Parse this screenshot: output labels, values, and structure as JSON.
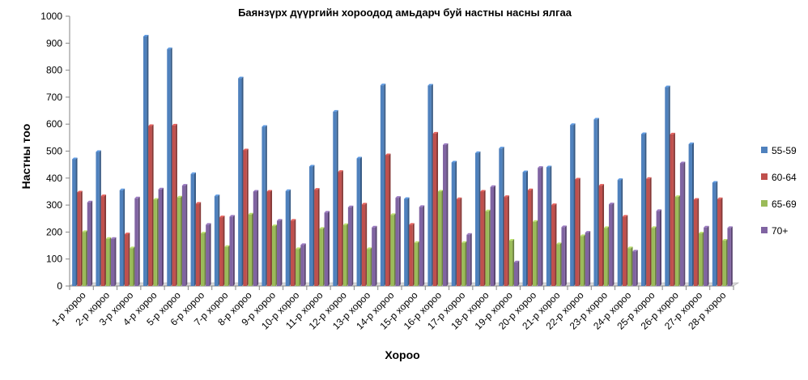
{
  "chart_data": {
    "type": "bar",
    "title": "Баянзүрх дүүргийн хороодод амьдарч буй настны насны ялгаа",
    "xlabel": "Хороо",
    "ylabel": "Настны тоо",
    "ylim": [
      0,
      1000
    ],
    "yticks": [
      "0",
      "100",
      "200",
      "300",
      "400",
      "500",
      "600",
      "700",
      "800",
      "900",
      "1000"
    ],
    "grid": false,
    "legend_position": "right",
    "categories": [
      "1-р хороо",
      "2-р хороо",
      "3-р хороо",
      "4-р хороо",
      "5-р хороо",
      "6-р хороо",
      "7-р хороо",
      "8-р хороо",
      "9-р хороо",
      "10-р хороо",
      "11-р хороо",
      "12-р хороо",
      "13-р хороо",
      "14-р хороо",
      "15-р хороо",
      "16-р хороо",
      "17-р хороо",
      "18-р хороо",
      "19-р хороо",
      "20-р хороо",
      "21-р хороо",
      "22-р хороо",
      "23-р хороо",
      "24-р хороо",
      "25-р хороо",
      "26-р хороо",
      "27-р хороо",
      "28-р хороо"
    ],
    "series": [
      {
        "name": "55-59",
        "color": "#4F81BD",
        "values": [
          470,
          497,
          355,
          925,
          878,
          415,
          333,
          770,
          590,
          352,
          443,
          646,
          473,
          744,
          323,
          743,
          458,
          493,
          510,
          422,
          440,
          597,
          617,
          393,
          563,
          737,
          526,
          383
        ]
      },
      {
        "name": "60-64",
        "color": "#C0504D",
        "values": [
          347,
          333,
          192,
          593,
          595,
          305,
          255,
          503,
          350,
          242,
          357,
          423,
          302,
          485,
          227,
          565,
          322,
          350,
          330,
          355,
          300,
          395,
          372,
          257,
          397,
          562,
          320,
          322
        ]
      },
      {
        "name": "65-69",
        "color": "#9BBB59",
        "values": [
          200,
          175,
          140,
          320,
          328,
          195,
          145,
          265,
          222,
          137,
          212,
          226,
          137,
          263,
          160,
          350,
          160,
          277,
          168,
          238,
          155,
          185,
          215,
          140,
          215,
          330,
          195,
          168
        ]
      },
      {
        "name": "70+",
        "color": "#8064A2",
        "values": [
          310,
          175,
          325,
          358,
          372,
          227,
          257,
          350,
          242,
          152,
          272,
          292,
          217,
          327,
          293,
          523,
          190,
          367,
          88,
          438,
          218,
          198,
          303,
          128,
          278,
          455,
          217,
          215
        ]
      }
    ]
  }
}
